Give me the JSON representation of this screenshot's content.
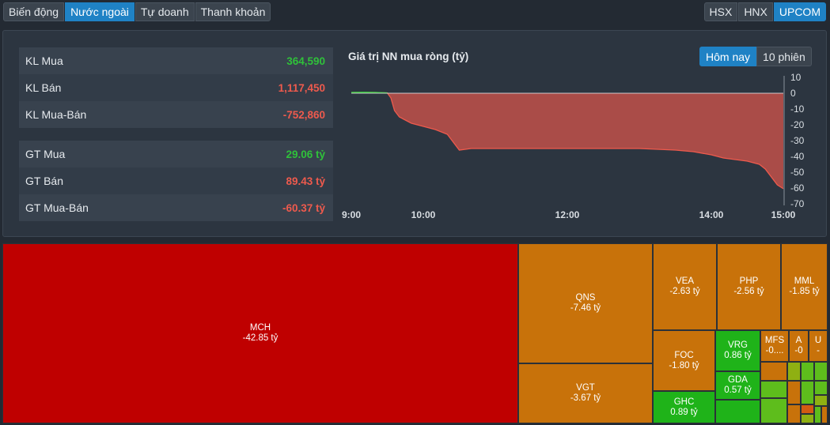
{
  "tabs": [
    {
      "label": "Biến động",
      "active": false
    },
    {
      "label": "Nước ngoài",
      "active": true
    },
    {
      "label": "Tự doanh",
      "active": false
    },
    {
      "label": "Thanh khoản",
      "active": false
    }
  ],
  "exchanges": [
    {
      "label": "HSX",
      "active": false
    },
    {
      "label": "HNX",
      "active": false
    },
    {
      "label": "UPCOM",
      "active": true
    }
  ],
  "volume": [
    {
      "label": "KL Mua",
      "value": "364,590",
      "color": "green"
    },
    {
      "label": "KL Bán",
      "value": "1,117,450",
      "color": "red"
    },
    {
      "label": "KL Mua-Bán",
      "value": "-752,860",
      "color": "red"
    }
  ],
  "value": [
    {
      "label": "GT Mua",
      "value": "29.06 tỷ",
      "color": "green"
    },
    {
      "label": "GT Bán",
      "value": "89.43 tỷ",
      "color": "red"
    },
    {
      "label": "GT Mua-Bán",
      "value": "-60.37 tỷ",
      "color": "red"
    }
  ],
  "chart_title": "Giá trị NN mua ròng (tỷ)",
  "periods": [
    {
      "label": "Hôm nay",
      "active": true
    },
    {
      "label": "10 phiên",
      "active": false
    }
  ],
  "chart_data": {
    "type": "area",
    "title": "Giá trị NN mua ròng (tỷ)",
    "x_ticks": [
      "9:00",
      "10:00",
      "12:00",
      "14:00",
      "15:00"
    ],
    "y_ticks": [
      "10",
      "0",
      "-10",
      "-20",
      "-30",
      "-40",
      "-50",
      "-60",
      "-70"
    ],
    "ylim": [
      -70,
      10
    ],
    "colors": {
      "negative": "#c1504a",
      "positive": "#2fc13a",
      "line": "#ee5a4d"
    },
    "series": [
      {
        "x": [
          "9:00",
          "9:10",
          "9:20",
          "9:30",
          "9:33",
          "9:36",
          "9:40",
          "9:45",
          "9:50",
          "10:00",
          "10:10",
          "10:20",
          "10:30",
          "10:40",
          "10:50",
          "11:00",
          "11:15",
          "11:30",
          "12:00",
          "13:00",
          "13:30",
          "13:45",
          "14:00",
          "14:10",
          "14:20",
          "14:30",
          "14:40",
          "14:45",
          "14:50",
          "14:55",
          "15:00"
        ],
        "values": [
          0.5,
          0.6,
          0.5,
          0.2,
          -3,
          -11,
          -15,
          -17,
          -19,
          -21,
          -23,
          -26,
          -36,
          -35,
          -35,
          -35,
          -35,
          -35,
          -35,
          -35,
          -36,
          -37,
          -39,
          -41,
          -42,
          -43,
          -45,
          -48,
          -53,
          -58,
          -60.4
        ]
      }
    ]
  },
  "treemap": [
    {
      "ticker": "MCH",
      "value": "-42.85 tỷ",
      "color": "red"
    },
    {
      "ticker": "QNS",
      "value": "-7.46 tỷ",
      "color": "orange"
    },
    {
      "ticker": "VGT",
      "value": "-3.67 tỷ",
      "color": "orange"
    },
    {
      "ticker": "VEA",
      "value": "-2.63 tỷ",
      "color": "orange"
    },
    {
      "ticker": "PHP",
      "value": "-2.56 tỷ",
      "color": "orange"
    },
    {
      "ticker": "MML",
      "value": "-1.85 tỷ",
      "color": "orange"
    },
    {
      "ticker": "FOC",
      "value": "-1.80 tỷ",
      "color": "orange"
    },
    {
      "ticker": "VRG",
      "value": "0.86 tỷ",
      "color": "green"
    },
    {
      "ticker": "GDA",
      "value": "0.57 tỷ",
      "color": "green"
    },
    {
      "ticker": "GHC",
      "value": "0.89 tỷ",
      "color": "green"
    },
    {
      "ticker": "MFS",
      "value": "-0....",
      "color": "orange"
    },
    {
      "ticker": "A",
      "value": "-0",
      "color": "orange"
    },
    {
      "ticker": "U",
      "value": "-",
      "color": "orange"
    }
  ]
}
